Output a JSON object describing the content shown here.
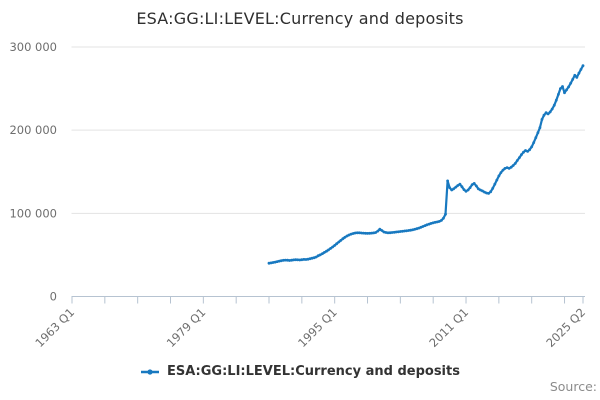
{
  "title": "ESA:GG:LI:LEVEL:Currency and deposits",
  "legend": {
    "label": "ESA:GG:LI:LEVEL:Currency and deposits"
  },
  "source": {
    "label": "Source:"
  },
  "colors": {
    "line": "#1879c0",
    "grid": "#e3e3e3",
    "axis": "#b6c3d1",
    "title_text": "#2f2f2f",
    "tick_text": "#6e6e6e",
    "legend_text": "#333333",
    "source_text": "#8c8c8c"
  },
  "chart_data": {
    "type": "line",
    "title": "ESA:GG:LI:LEVEL:Currency and deposits",
    "xlabel": "",
    "ylabel": "",
    "legend_position": "bottom",
    "grid": true,
    "x_axis": {
      "start_year": 1963.0,
      "end_year": 2025.25,
      "minor_tick_interval_years": 4,
      "tick_labels": [
        {
          "label": "1963 Q1",
          "year": 1963.0
        },
        {
          "label": "1979 Q1",
          "year": 1979.0
        },
        {
          "label": "1995 Q1",
          "year": 1995.0
        },
        {
          "label": "2011 Q1",
          "year": 2011.0
        },
        {
          "label": "2025 Q2",
          "year": 2025.25
        }
      ]
    },
    "y_axis": {
      "min": 0,
      "max": 300000,
      "tick_interval": 100000,
      "ticks": [
        {
          "value": 0,
          "label": "0"
        },
        {
          "value": 100000,
          "label": "100 000"
        },
        {
          "value": 200000,
          "label": "200 000"
        },
        {
          "value": 300000,
          "label": "300 000"
        }
      ]
    },
    "series": [
      {
        "name": "ESA:GG:LI:LEVEL:Currency and deposits",
        "frequency": "quarterly",
        "start": "1987 Q1",
        "end": "2025 Q2",
        "values": [
          40000,
          40400,
          40900,
          41400,
          42000,
          42600,
          43100,
          43500,
          43800,
          43600,
          43300,
          43600,
          44000,
          44300,
          44100,
          43900,
          44200,
          44600,
          44500,
          44900,
          45400,
          46000,
          46700,
          47500,
          49000,
          50200,
          51500,
          53000,
          54500,
          56000,
          57800,
          59500,
          61500,
          63500,
          65500,
          67500,
          69500,
          71200,
          72800,
          74000,
          75000,
          75800,
          76300,
          76600,
          76600,
          76400,
          76200,
          76000,
          75900,
          76000,
          76200,
          76500,
          76900,
          78600,
          80900,
          79300,
          77600,
          76900,
          76600,
          76700,
          76900,
          77200,
          77500,
          77800,
          78100,
          78400,
          78700,
          79000,
          79300,
          79700,
          80200,
          80800,
          81500,
          82300,
          83200,
          84200,
          85200,
          86200,
          87100,
          87900,
          88600,
          89200,
          89700,
          90300,
          91500,
          94000,
          99000,
          139000,
          131000,
          128000,
          129500,
          131500,
          133500,
          135000,
          132000,
          128500,
          126500,
          128000,
          131000,
          134500,
          136000,
          133000,
          129500,
          128000,
          127000,
          125500,
          124500,
          124000,
          126000,
          130000,
          135000,
          140000,
          145000,
          149000,
          152000,
          154000,
          155000,
          154000,
          155500,
          157500,
          160000,
          163500,
          167000,
          170500,
          173500,
          175500,
          174500,
          176500,
          180000,
          185000,
          191000,
          197000,
          203000,
          213000,
          218000,
          221000,
          219500,
          222000,
          225500,
          230000,
          236000,
          243000,
          250000,
          252500,
          245000,
          248500,
          252000,
          256500,
          261000,
          266000,
          263500,
          268500,
          273000,
          277500
        ]
      }
    ]
  }
}
